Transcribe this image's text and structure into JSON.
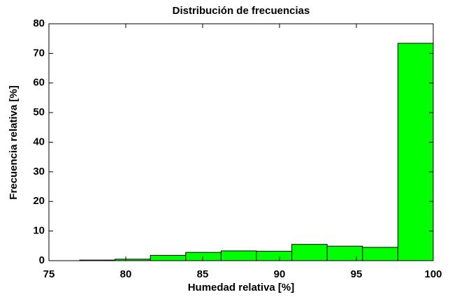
{
  "chart_data": {
    "type": "histogram",
    "title": "Distribución de frecuencias",
    "x_label": "Humedad relativa [%]",
    "y_label": "Frecuencia relativa [%]",
    "bins": [
      77,
      79.3,
      81.6,
      83.9,
      86.2,
      88.5,
      90.8,
      93.1,
      95.4,
      97.7,
      100
    ],
    "values": [
      0.2,
      0.5,
      1.8,
      2.8,
      3.3,
      3.2,
      5.5,
      4.9,
      4.5,
      73.4
    ],
    "color": "#00ff00",
    "xlim": [
      75,
      100
    ],
    "xticks": [
      75,
      80,
      85,
      90,
      95,
      100
    ],
    "ylim": [
      0,
      80
    ],
    "yticks": [
      0,
      10,
      20,
      30,
      40,
      50,
      60,
      70,
      80
    ],
    "grid": false
  }
}
